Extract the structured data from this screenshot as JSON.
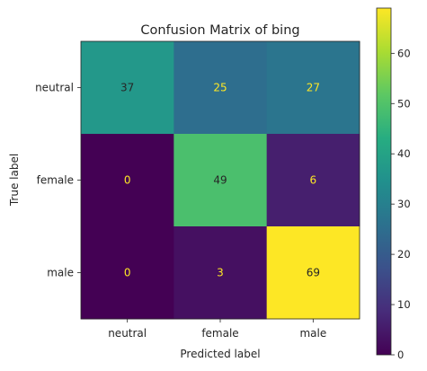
{
  "chart_data": {
    "type": "heatmap",
    "title": "Confusion Matrix of bing",
    "xlabel": "Predicted label",
    "ylabel": "True label",
    "x_categories": [
      "neutral",
      "female",
      "male"
    ],
    "y_categories": [
      "neutral",
      "female",
      "male"
    ],
    "values": [
      [
        37,
        25,
        27
      ],
      [
        0,
        49,
        6
      ],
      [
        0,
        3,
        69
      ]
    ],
    "colormap": "viridis",
    "color_range": [
      0,
      69
    ],
    "colorbar_ticks": [
      0,
      10,
      20,
      30,
      40,
      50,
      60
    ],
    "grid": false
  }
}
